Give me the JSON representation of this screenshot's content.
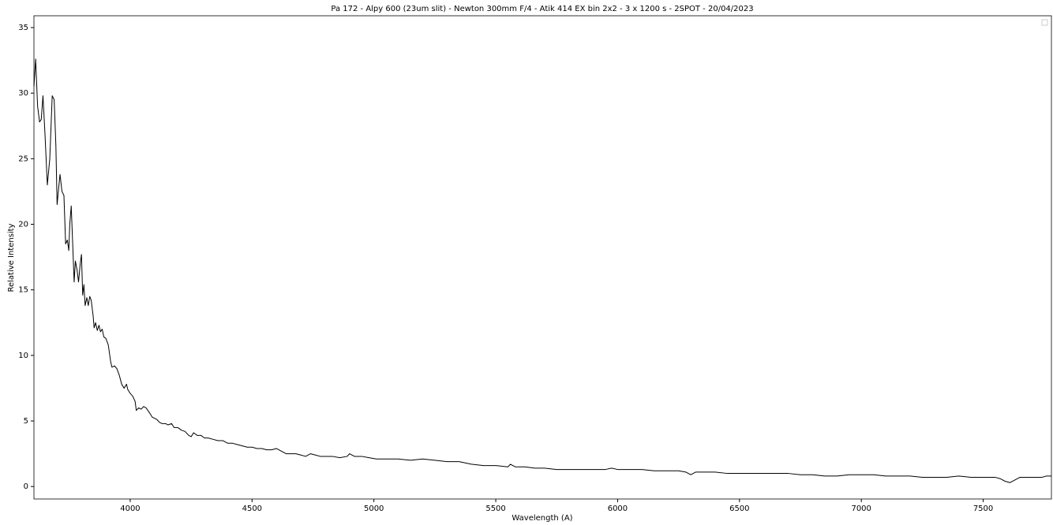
{
  "chart_data": {
    "type": "line",
    "title": "Pa 172 - Alpy 600 (23um slit) - Newton 300mm F/4 - Atik 414 EX bin 2x2 - 3 x 1200 s - 2SPOT - 20/04/2023",
    "xlabel": "Wavelength (A)",
    "ylabel": "Relative Intensity",
    "x": [
      3605,
      3612,
      3620,
      3628,
      3635,
      3642,
      3650,
      3660,
      3670,
      3680,
      3688,
      3695,
      3700,
      3705,
      3712,
      3720,
      3728,
      3735,
      3742,
      3748,
      3752,
      3758,
      3765,
      3770,
      3775,
      3782,
      3788,
      3795,
      3800,
      3805,
      3810,
      3815,
      3822,
      3828,
      3834,
      3840,
      3848,
      3852,
      3858,
      3865,
      3872,
      3878,
      3885,
      3892,
      3900,
      3910,
      3920,
      3925,
      3935,
      3945,
      3955,
      3965,
      3975,
      3985,
      3990,
      4000,
      4010,
      4020,
      4025,
      4035,
      4045,
      4055,
      4065,
      4080,
      4090,
      4100,
      4110,
      4120,
      4130,
      4145,
      4155,
      4170,
      4180,
      4195,
      4210,
      4225,
      4240,
      4250,
      4260,
      4275,
      4290,
      4305,
      4320,
      4340,
      4360,
      4380,
      4400,
      4420,
      4440,
      4460,
      4480,
      4500,
      4520,
      4540,
      4560,
      4580,
      4600,
      4620,
      4640,
      4660,
      4680,
      4700,
      4720,
      4740,
      4760,
      4780,
      4800,
      4830,
      4860,
      4890,
      4900,
      4920,
      4950,
      4980,
      5010,
      5050,
      5100,
      5150,
      5200,
      5250,
      5300,
      5350,
      5400,
      5450,
      5500,
      5550,
      5560,
      5580,
      5620,
      5660,
      5700,
      5750,
      5800,
      5850,
      5900,
      5950,
      5975,
      6000,
      6050,
      6100,
      6150,
      6200,
      6250,
      6280,
      6300,
      6320,
      6350,
      6400,
      6450,
      6500,
      6550,
      6600,
      6650,
      6700,
      6750,
      6800,
      6850,
      6900,
      6950,
      7000,
      7050,
      7100,
      7150,
      7200,
      7250,
      7300,
      7350,
      7400,
      7450,
      7500,
      7550,
      7570,
      7590,
      7610,
      7630,
      7650,
      7700,
      7740,
      7760,
      7780
    ],
    "series": [
      {
        "color": "#000000",
        "values": [
          30.5,
          32.6,
          29,
          27.8,
          28,
          29.8,
          27,
          23,
          25,
          29.8,
          29.5,
          26,
          21.5,
          22.5,
          23.8,
          22.5,
          22.2,
          18.5,
          18.8,
          18,
          20,
          21.4,
          18,
          15.6,
          17.2,
          16.5,
          15.6,
          17,
          17.7,
          14.6,
          15.4,
          13.8,
          14.4,
          13.8,
          14.5,
          14.2,
          13,
          12.1,
          12.5,
          11.9,
          12.3,
          11.8,
          12,
          11.4,
          11.3,
          10.8,
          9.5,
          9.1,
          9.2,
          9,
          8.5,
          7.8,
          7.5,
          7.8,
          7.4,
          7.1,
          6.9,
          6.5,
          5.8,
          6,
          5.9,
          6.1,
          6,
          5.6,
          5.3,
          5.2,
          5.1,
          4.9,
          4.8,
          4.8,
          4.7,
          4.8,
          4.5,
          4.5,
          4.3,
          4.2,
          3.9,
          3.8,
          4.1,
          3.9,
          3.9,
          3.7,
          3.7,
          3.6,
          3.5,
          3.5,
          3.3,
          3.3,
          3.2,
          3.1,
          3.0,
          3.0,
          2.9,
          2.9,
          2.8,
          2.8,
          2.9,
          2.7,
          2.5,
          2.5,
          2.5,
          2.4,
          2.3,
          2.5,
          2.4,
          2.3,
          2.3,
          2.3,
          2.2,
          2.3,
          2.5,
          2.3,
          2.3,
          2.2,
          2.1,
          2.1,
          2.1,
          2.0,
          2.1,
          2.0,
          1.9,
          1.9,
          1.7,
          1.6,
          1.6,
          1.5,
          1.7,
          1.5,
          1.5,
          1.4,
          1.4,
          1.3,
          1.3,
          1.3,
          1.3,
          1.3,
          1.4,
          1.3,
          1.3,
          1.3,
          1.2,
          1.2,
          1.2,
          1.1,
          0.9,
          1.1,
          1.1,
          1.1,
          1.0,
          1.0,
          1.0,
          1.0,
          1.0,
          1.0,
          0.9,
          0.9,
          0.8,
          0.8,
          0.9,
          0.9,
          0.9,
          0.8,
          0.8,
          0.8,
          0.7,
          0.7,
          0.7,
          0.8,
          0.7,
          0.7,
          0.7,
          0.6,
          0.4,
          0.3,
          0.5,
          0.7,
          0.7,
          0.7,
          0.8,
          0.8
        ]
      }
    ],
    "xlim": [
      3605,
      7780
    ],
    "ylim": [
      -0.95,
      35.9
    ],
    "xticks": [
      4000,
      4500,
      5000,
      5500,
      6000,
      6500,
      7000,
      7500
    ],
    "yticks": [
      0,
      5,
      10,
      15,
      20,
      25,
      30,
      35
    ]
  }
}
